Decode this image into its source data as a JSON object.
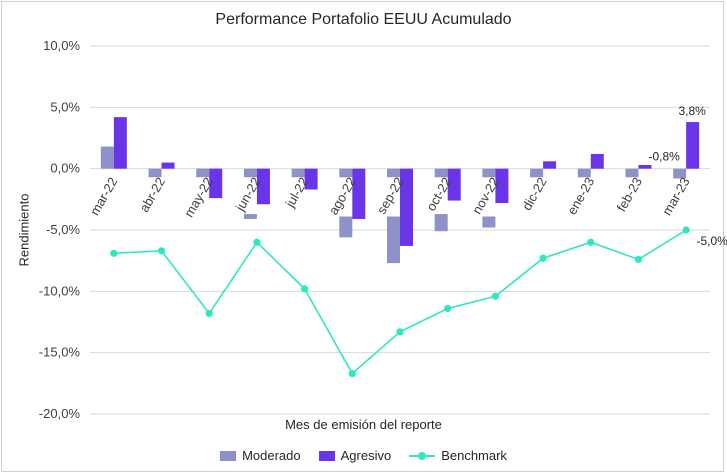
{
  "chart_data": {
    "type": "bar",
    "title": "Performance Portafolio EEUU Acumulado",
    "xlabel": "Mes de emisión del reporte",
    "ylabel": "Rendimiento",
    "ylim": [
      -20,
      10
    ],
    "y_ticks": [
      10,
      5,
      0,
      -5,
      -10,
      -15,
      -20
    ],
    "y_tick_labels": [
      "10,0%",
      "5,0%",
      "0,0%",
      "-5,0%",
      "-10,0%",
      "-15,0%",
      "-20,0%"
    ],
    "grid": true,
    "legend_position": "bottom",
    "categories": [
      "mar-22",
      "abr-22",
      "may-22",
      "jun-22",
      "jul-22",
      "ago-22",
      "sep-22",
      "oct-22",
      "nov-22",
      "dic-22",
      "ene-23",
      "feb-23",
      "mar-23"
    ],
    "series": [
      {
        "name": "Moderado",
        "type": "bar",
        "color": "#8f92c9",
        "values": [
          1.8,
          -0.7,
          -0.7,
          -0.7,
          -0.7,
          -0.7,
          -0.7,
          -0.7,
          -0.7,
          -0.7,
          -0.7,
          -0.7,
          -0.8
        ]
      },
      {
        "name": "Agresivo",
        "type": "bar",
        "color": "#6a35e8",
        "values": [
          4.2,
          0.5,
          -2.4,
          -2.9,
          -1.7,
          -4.1,
          -6.3,
          -2.6,
          -2.8,
          0.6,
          1.2,
          0.3,
          3.8
        ]
      },
      {
        "name": "Benchmark",
        "type": "line",
        "color": "#2ee8c0",
        "values": [
          -6.9,
          -6.7,
          -11.8,
          -6.0,
          -9.8,
          -16.7,
          -13.3,
          -11.4,
          -10.4,
          -7.3,
          -6.0,
          -7.4,
          -5.0
        ]
      }
    ],
    "moderado_extra_segments": [
      {
        "category": "jun-22",
        "from": -3.7,
        "to": -4.1
      },
      {
        "category": "ago-22",
        "from": -3.9,
        "to": -5.6
      },
      {
        "category": "sep-22",
        "from": -3.9,
        "to": -7.7
      },
      {
        "category": "oct-22",
        "from": -3.7,
        "to": -5.1
      },
      {
        "category": "nov-22",
        "from": -3.9,
        "to": -4.8
      }
    ],
    "data_labels": [
      {
        "category": "mar-23",
        "series": "Moderado",
        "text": "-0,8%"
      },
      {
        "category": "mar-23",
        "series": "Agresivo",
        "text": "3,8%"
      },
      {
        "category": "mar-23",
        "series": "Benchmark",
        "text": "-5,0%"
      }
    ]
  }
}
